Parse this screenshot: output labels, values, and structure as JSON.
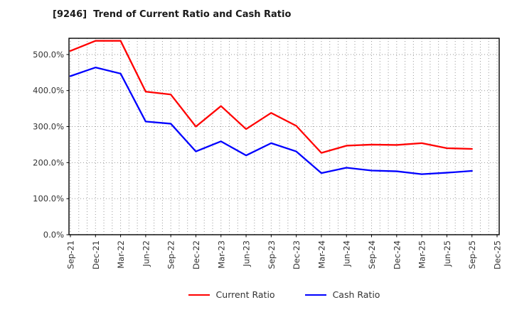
{
  "window": {
    "title": "[9246]  Trend of Current Ratio and Cash Ratio"
  },
  "chart_data": {
    "type": "line",
    "title": "[9246]  Trend of Current Ratio and Cash Ratio",
    "xlabel": "",
    "ylabel": "",
    "categories": [
      "Sep-21",
      "Dec-21",
      "Mar-22",
      "Jun-22",
      "Sep-22",
      "Dec-22",
      "Mar-23",
      "Jun-23",
      "Sep-23",
      "Dec-23",
      "Mar-24",
      "Jun-24",
      "Sep-24",
      "Dec-24",
      "Mar-25",
      "Jun-25",
      "Sep-25",
      "Dec-25"
    ],
    "series": [
      {
        "name": "Current Ratio",
        "color": "#ff0000",
        "values": [
          510,
          538,
          538,
          397,
          389,
          300,
          357,
          293,
          338,
          302,
          227,
          247,
          250,
          249,
          254,
          240,
          238
        ]
      },
      {
        "name": "Cash Ratio",
        "color": "#0000ff",
        "values": [
          440,
          464,
          447,
          314,
          308,
          231,
          259,
          220,
          254,
          231,
          171,
          186,
          178,
          176,
          168,
          172,
          177
        ]
      }
    ],
    "yticks": [
      {
        "value": 0,
        "label": "0.0%"
      },
      {
        "value": 100,
        "label": "100.0%"
      },
      {
        "value": 200,
        "label": "200.0%"
      },
      {
        "value": 300,
        "label": "300.0%"
      },
      {
        "value": 400,
        "label": "400.0%"
      },
      {
        "value": 500,
        "label": "500.0%"
      }
    ],
    "ylim": [
      0,
      545
    ],
    "grid": "dotted",
    "grid_color": "#999999",
    "axis_color": "#000000",
    "tick_label_color": "#333333",
    "legend_position": "bottom-center",
    "note_last_category_has_no_data": "Dec-25"
  }
}
